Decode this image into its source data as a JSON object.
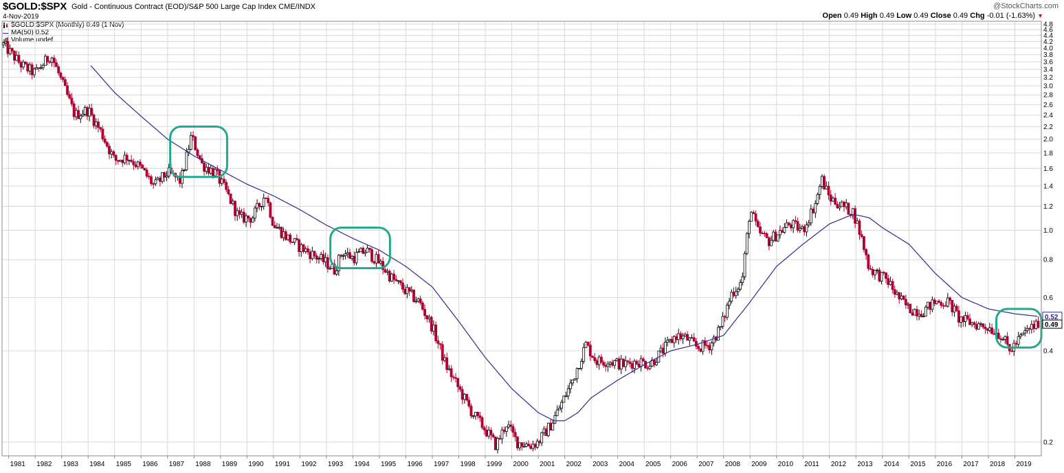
{
  "header": {
    "ticker": "$GOLD:$SPX",
    "subtitle": "Gold - Continuous Contract (EOD)/S&P 500 Large Cap Index  CME/INDX",
    "date": "4-Nov-2019",
    "copyright": "@StockCharts.com",
    "open_label": "Open",
    "open_value": "0.49",
    "high_label": "High",
    "high_value": "0.49",
    "low_label": "Low",
    "low_value": "0.49",
    "close_label": "Close",
    "close_value": "0.49",
    "chg_label": "Chg",
    "chg_value": "-0.01 (-1.63%)",
    "chg_arrow": "▼"
  },
  "legend": {
    "price": "$GOLD:$SPX (Monthly) 0.49 (1 Nov)",
    "ma": "MA(50) 0.52",
    "volume": "Volume undef"
  },
  "colors": {
    "up_candle": "#000000",
    "down_candle": "#b00030",
    "ma_line": "#2b2b8f",
    "highlight": "#20a88c",
    "grid": "#d8d8d8"
  },
  "chart_data": {
    "type": "candlestick",
    "interval": "Monthly",
    "y_scale": "log",
    "ylim": [
      0.18,
      4.9
    ],
    "y_ticks": [
      4.8,
      4.6,
      4.4,
      4.2,
      4.0,
      3.8,
      3.6,
      3.4,
      3.2,
      3.0,
      2.8,
      2.6,
      2.4,
      2.2,
      2.0,
      1.8,
      1.6,
      1.4,
      1.2,
      1.0,
      0.8,
      0.6,
      0.4,
      0.2
    ],
    "y_tick_labels": [
      "4.8",
      "4.6",
      "4.4",
      "4.2",
      "4.0",
      "3.8",
      "3.6",
      "3.4",
      "3.2",
      "3.0",
      "2.8",
      "2.6",
      "2.4",
      "2.2",
      "2.0",
      "1.8",
      "1.6",
      "1.4",
      "1.2",
      "1.0",
      "0.8",
      "0.6",
      "0.4",
      "0.2"
    ],
    "x_tick_labels": [
      "1981",
      "1982",
      "1983",
      "1984",
      "1985",
      "1986",
      "1987",
      "1988",
      "1989",
      "1990",
      "1991",
      "1992",
      "1993",
      "1994",
      "1995",
      "1996",
      "1997",
      "1998",
      "1999",
      "2000",
      "2001",
      "2002",
      "2003",
      "2004",
      "2005",
      "2006",
      "2007",
      "2008",
      "2009",
      "2010",
      "2011",
      "2012",
      "2013",
      "2014",
      "2015",
      "2016",
      "2017",
      "2018",
      "2019"
    ],
    "xlim": [
      1980.75,
      2020.0
    ],
    "ratio_anchors": [
      [
        1980.8,
        4.1
      ],
      [
        1981.5,
        3.5
      ],
      [
        1982.0,
        3.3
      ],
      [
        1982.6,
        3.8
      ],
      [
        1983.0,
        3.1
      ],
      [
        1983.5,
        2.4
      ],
      [
        1984.0,
        2.5
      ],
      [
        1984.5,
        2.1
      ],
      [
        1985.0,
        1.7
      ],
      [
        1985.5,
        1.75
      ],
      [
        1986.0,
        1.6
      ],
      [
        1986.5,
        1.4
      ],
      [
        1987.0,
        1.55
      ],
      [
        1987.5,
        1.45
      ],
      [
        1987.9,
        2.05
      ],
      [
        1988.3,
        1.65
      ],
      [
        1988.8,
        1.55
      ],
      [
        1989.2,
        1.35
      ],
      [
        1989.7,
        1.1
      ],
      [
        1990.2,
        1.1
      ],
      [
        1990.7,
        1.32
      ],
      [
        1991.0,
        1.05
      ],
      [
        1991.5,
        0.95
      ],
      [
        1992.0,
        0.88
      ],
      [
        1992.5,
        0.83
      ],
      [
        1993.0,
        0.78
      ],
      [
        1993.3,
        0.74
      ],
      [
        1993.6,
        0.85
      ],
      [
        1994.0,
        0.81
      ],
      [
        1994.5,
        0.86
      ],
      [
        1995.0,
        0.78
      ],
      [
        1995.5,
        0.69
      ],
      [
        1996.0,
        0.63
      ],
      [
        1996.5,
        0.58
      ],
      [
        1997.0,
        0.48
      ],
      [
        1997.5,
        0.36
      ],
      [
        1998.0,
        0.3
      ],
      [
        1998.5,
        0.25
      ],
      [
        1999.0,
        0.22
      ],
      [
        1999.4,
        0.195
      ],
      [
        1999.8,
        0.23
      ],
      [
        2000.2,
        0.2
      ],
      [
        2000.7,
        0.195
      ],
      [
        2001.0,
        0.2
      ],
      [
        2001.5,
        0.23
      ],
      [
        2001.9,
        0.27
      ],
      [
        2002.3,
        0.32
      ],
      [
        2002.8,
        0.42
      ],
      [
        2003.2,
        0.37
      ],
      [
        2003.7,
        0.37
      ],
      [
        2004.2,
        0.36
      ],
      [
        2004.8,
        0.37
      ],
      [
        2005.2,
        0.36
      ],
      [
        2005.7,
        0.4
      ],
      [
        2006.2,
        0.45
      ],
      [
        2006.6,
        0.44
      ],
      [
        2007.0,
        0.41
      ],
      [
        2007.5,
        0.42
      ],
      [
        2007.9,
        0.48
      ],
      [
        2008.3,
        0.62
      ],
      [
        2008.7,
        0.68
      ],
      [
        2009.0,
        1.18
      ],
      [
        2009.3,
        0.99
      ],
      [
        2009.7,
        0.92
      ],
      [
        2010.0,
        0.97
      ],
      [
        2010.5,
        1.05
      ],
      [
        2011.0,
        1.0
      ],
      [
        2011.5,
        1.25
      ],
      [
        2011.7,
        1.48
      ],
      [
        2012.0,
        1.28
      ],
      [
        2012.5,
        1.2
      ],
      [
        2012.9,
        1.15
      ],
      [
        2013.2,
        0.95
      ],
      [
        2013.5,
        0.75
      ],
      [
        2013.8,
        0.72
      ],
      [
        2014.2,
        0.68
      ],
      [
        2014.6,
        0.6
      ],
      [
        2015.0,
        0.55
      ],
      [
        2015.5,
        0.54
      ],
      [
        2016.0,
        0.58
      ],
      [
        2016.5,
        0.58
      ],
      [
        2016.9,
        0.51
      ],
      [
        2017.5,
        0.49
      ],
      [
        2018.0,
        0.48
      ],
      [
        2018.5,
        0.45
      ],
      [
        2018.8,
        0.4
      ],
      [
        2019.2,
        0.44
      ],
      [
        2019.5,
        0.47
      ],
      [
        2019.85,
        0.49
      ]
    ],
    "ma50_anchors": [
      [
        1984.1,
        3.5
      ],
      [
        1985.0,
        2.85
      ],
      [
        1986.0,
        2.38
      ],
      [
        1987.0,
        2.0
      ],
      [
        1988.0,
        1.76
      ],
      [
        1989.0,
        1.58
      ],
      [
        1990.0,
        1.42
      ],
      [
        1991.0,
        1.3
      ],
      [
        1992.0,
        1.17
      ],
      [
        1993.0,
        1.04
      ],
      [
        1994.0,
        0.94
      ],
      [
        1995.0,
        0.86
      ],
      [
        1996.0,
        0.76
      ],
      [
        1997.0,
        0.65
      ],
      [
        1998.0,
        0.5
      ],
      [
        1999.0,
        0.38
      ],
      [
        2000.0,
        0.3
      ],
      [
        2001.0,
        0.25
      ],
      [
        2001.6,
        0.235
      ],
      [
        2002.0,
        0.235
      ],
      [
        2002.5,
        0.25
      ],
      [
        2003.0,
        0.28
      ],
      [
        2004.0,
        0.32
      ],
      [
        2005.0,
        0.36
      ],
      [
        2006.0,
        0.4
      ],
      [
        2007.0,
        0.42
      ],
      [
        2008.0,
        0.45
      ],
      [
        2009.0,
        0.58
      ],
      [
        2010.0,
        0.76
      ],
      [
        2011.0,
        0.9
      ],
      [
        2012.0,
        1.05
      ],
      [
        2012.9,
        1.13
      ],
      [
        2013.5,
        1.1
      ],
      [
        2014.0,
        1.02
      ],
      [
        2015.0,
        0.9
      ],
      [
        2016.0,
        0.72
      ],
      [
        2017.0,
        0.6
      ],
      [
        2018.0,
        0.55
      ],
      [
        2019.0,
        0.53
      ],
      [
        2019.85,
        0.52
      ]
    ],
    "last_close": 0.49,
    "last_ma": 0.52,
    "last_close_label": "0.49",
    "last_ma_label": "0.52",
    "highlight_boxes": [
      {
        "x0": 1987.1,
        "x1": 1989.25,
        "y_top": 2.2,
        "y_bottom": 1.5
      },
      {
        "x0": 1993.15,
        "x1": 1995.4,
        "y_top": 1.02,
        "y_bottom": 0.75
      },
      {
        "x0": 2018.3,
        "x1": 2020.0,
        "y_top": 0.55,
        "y_bottom": 0.41
      }
    ]
  }
}
